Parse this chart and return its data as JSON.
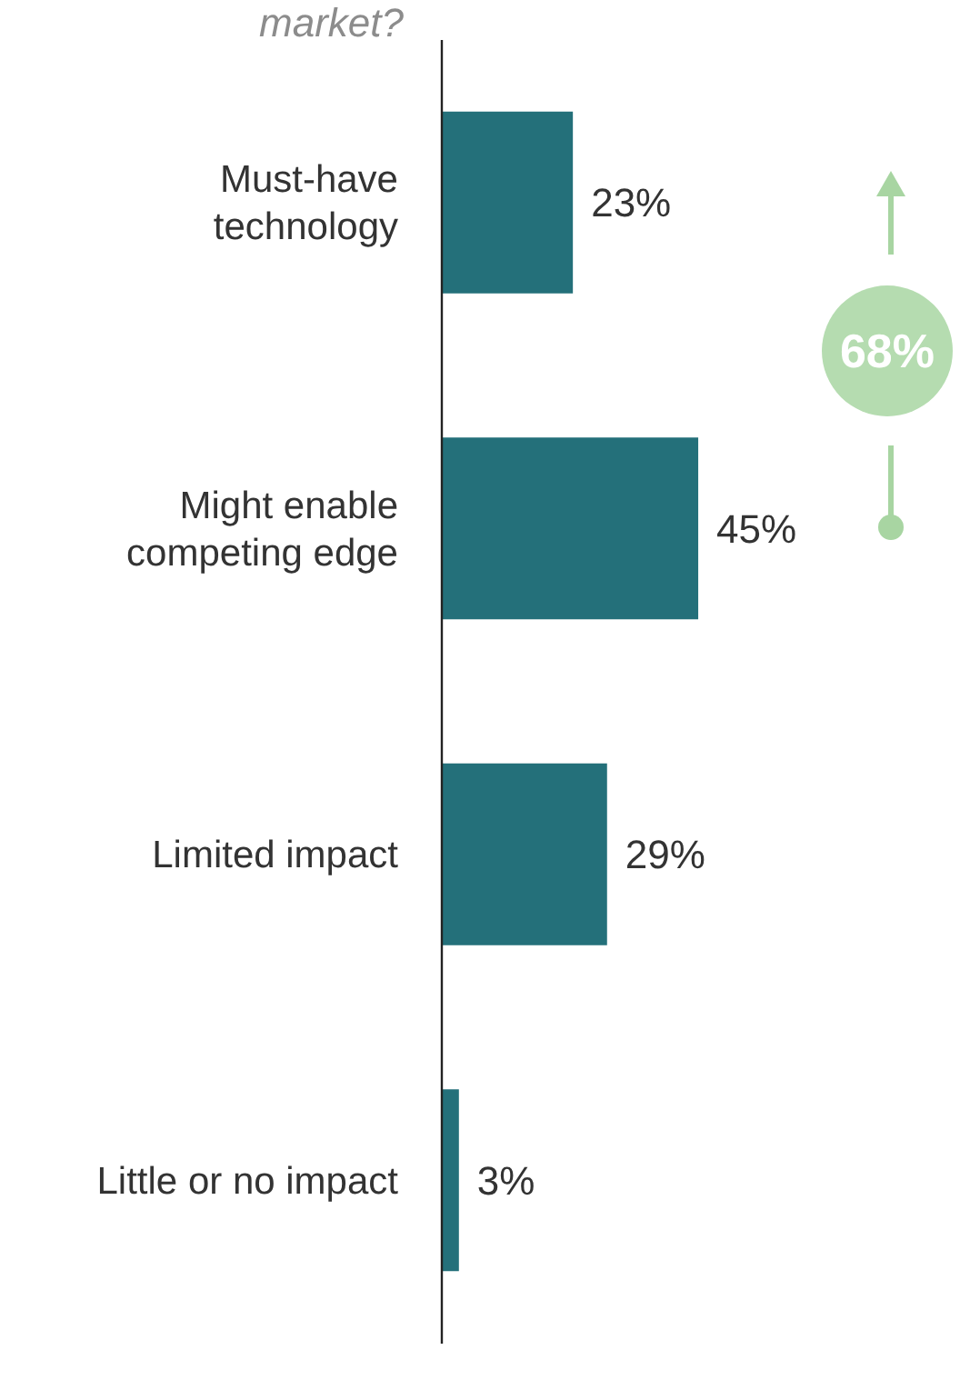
{
  "chart_data": {
    "type": "bar",
    "orientation": "horizontal",
    "title": "market?",
    "categories": [
      "Must-have technology",
      "Might enable competing edge",
      "Limited impact",
      "Little or no impact"
    ],
    "values": [
      23,
      45,
      29,
      3
    ],
    "color": "#24707a",
    "value_labels": [
      "23%",
      "45%",
      "29%",
      "3%"
    ],
    "annotations": [
      "68%"
    ]
  }
}
